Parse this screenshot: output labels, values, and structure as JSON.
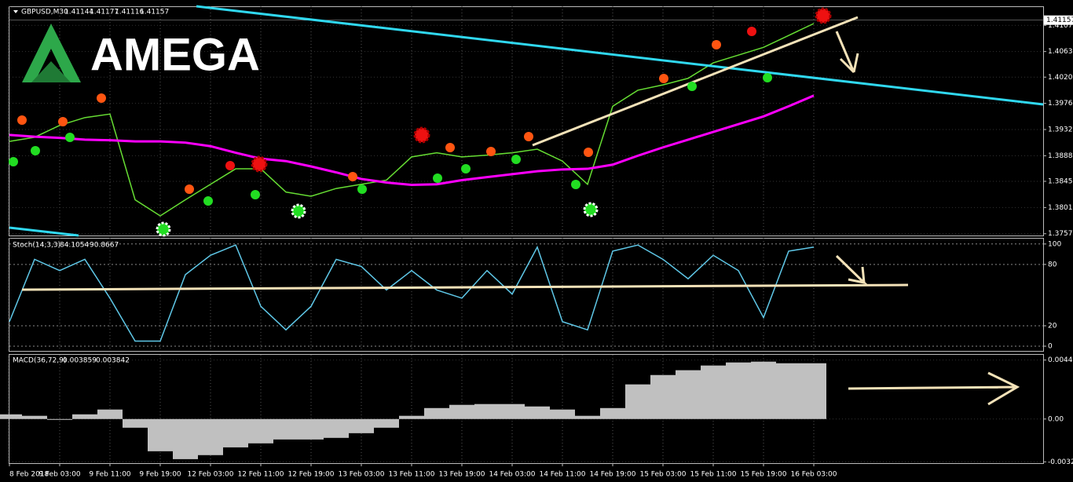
{
  "brand": "AMEGA",
  "chart_data": [
    {
      "type": "line",
      "title": "GBPUSD,M30",
      "ohlc": [
        1.41144,
        1.41177,
        1.41116,
        1.41157
      ],
      "series": [
        {
          "name": "GBPUSD",
          "color": "#66dd33",
          "values": [
            1.3912,
            1.3919,
            1.3939,
            1.3952,
            1.3958,
            1.3814,
            1.3787,
            1.3814,
            1.384,
            1.3866,
            1.3866,
            1.3827,
            1.382,
            1.3833,
            1.384,
            1.3847,
            1.3886,
            1.3893,
            1.3886,
            1.3889,
            1.3893,
            1.3899,
            1.3879,
            1.384,
            1.3971,
            1.3998,
            1.4007,
            1.4018,
            1.4044,
            1.4057,
            1.407,
            1.409,
            1.411
          ]
        },
        {
          "name": "MA",
          "color": "#ff00ff",
          "values": [
            1.3923,
            1.392,
            1.3918,
            1.3915,
            1.3914,
            1.3912,
            1.3912,
            1.391,
            1.3904,
            1.3893,
            1.3883,
            1.3879,
            1.387,
            1.386,
            1.3849,
            1.3843,
            1.3839,
            1.384,
            1.3847,
            1.3852,
            1.3857,
            1.3862,
            1.3865,
            1.3866,
            1.3873,
            1.3888,
            1.3902,
            1.3915,
            1.3928,
            1.3941,
            1.3954,
            1.3971,
            1.3989
          ]
        }
      ],
      "ylim": [
        1.3754,
        1.4139
      ],
      "yticks": [
        {
          "value": 1.4107,
          "label": "1.41070"
        },
        {
          "value": 1.4063,
          "label": "1.40630"
        },
        {
          "value": 1.402,
          "label": "1.40200"
        },
        {
          "value": 1.3976,
          "label": "1.39760"
        },
        {
          "value": 1.3932,
          "label": "1.39320"
        },
        {
          "value": 1.3888,
          "label": "1.38880"
        },
        {
          "value": 1.3845,
          "label": "1.38450"
        },
        {
          "value": 1.3801,
          "label": "1.38010"
        },
        {
          "value": 1.3757,
          "label": "1.37570"
        }
      ],
      "grid": true
    },
    {
      "type": "line",
      "title": "Stoch(14,3,3)",
      "readout": [
        84.1054,
        90.8667
      ],
      "series": [
        {
          "name": "Stoch",
          "color": "#5fc8e8",
          "values": [
            24,
            85,
            74,
            85,
            47,
            5,
            5,
            70,
            89,
            99,
            39,
            16,
            39,
            85,
            78,
            55,
            74,
            55,
            47,
            74,
            51,
            97,
            24,
            16,
            93,
            99,
            85,
            66,
            89,
            74,
            28,
            93,
            97
          ]
        }
      ],
      "ylim": [
        -4.6,
        106
      ],
      "yticks": [
        100,
        80,
        20,
        0
      ],
      "grid": true
    },
    {
      "type": "bar",
      "title": "MACD(36,72,9)",
      "readout": [
        0.003859,
        0.003842
      ],
      "categories": [
        "8 Feb 2018",
        null,
        "9 Feb 03:00",
        null,
        "9 Feb 11:00",
        null,
        "9 Feb 19:00",
        null,
        "12 Feb 03:00",
        null,
        "12 Feb 11:00",
        null,
        "12 Feb 19:00",
        null,
        "13 Feb 03:00",
        null,
        "13 Feb 11:00",
        null,
        "13 Feb 19:00",
        null,
        "14 Feb 03:00",
        null,
        "14 Feb 11:00",
        null,
        "14 Feb 19:00",
        null,
        "15 Feb 03:00",
        null,
        "15 Feb 11:00",
        null,
        "15 Feb 19:00",
        null,
        "16 Feb 03:00"
      ],
      "series": [
        {
          "name": "MACD",
          "color": "#c0c0c0",
          "values": [
            0.00035,
            0.00024,
            -6e-05,
            0.00035,
            0.00071,
            -0.00065,
            -0.00241,
            -0.003,
            -0.0027,
            -0.00212,
            -0.00182,
            -0.00153,
            -0.00153,
            -0.00141,
            -0.00106,
            -0.00065,
            0.00024,
            0.00082,
            0.00106,
            0.00112,
            0.00112,
            0.00094,
            0.00071,
            0.00024,
            0.00082,
            0.00259,
            0.00329,
            0.00365,
            0.004,
            0.00423,
            0.00429,
            0.00417,
            0.00417
          ]
        }
      ],
      "ylim": [
        -0.0033,
        0.0048
      ],
      "yticks": [
        0.00441,
        {
          "value": 0,
          "label": "0.00"
        },
        -0.0032
      ],
      "grid": true
    }
  ]
}
